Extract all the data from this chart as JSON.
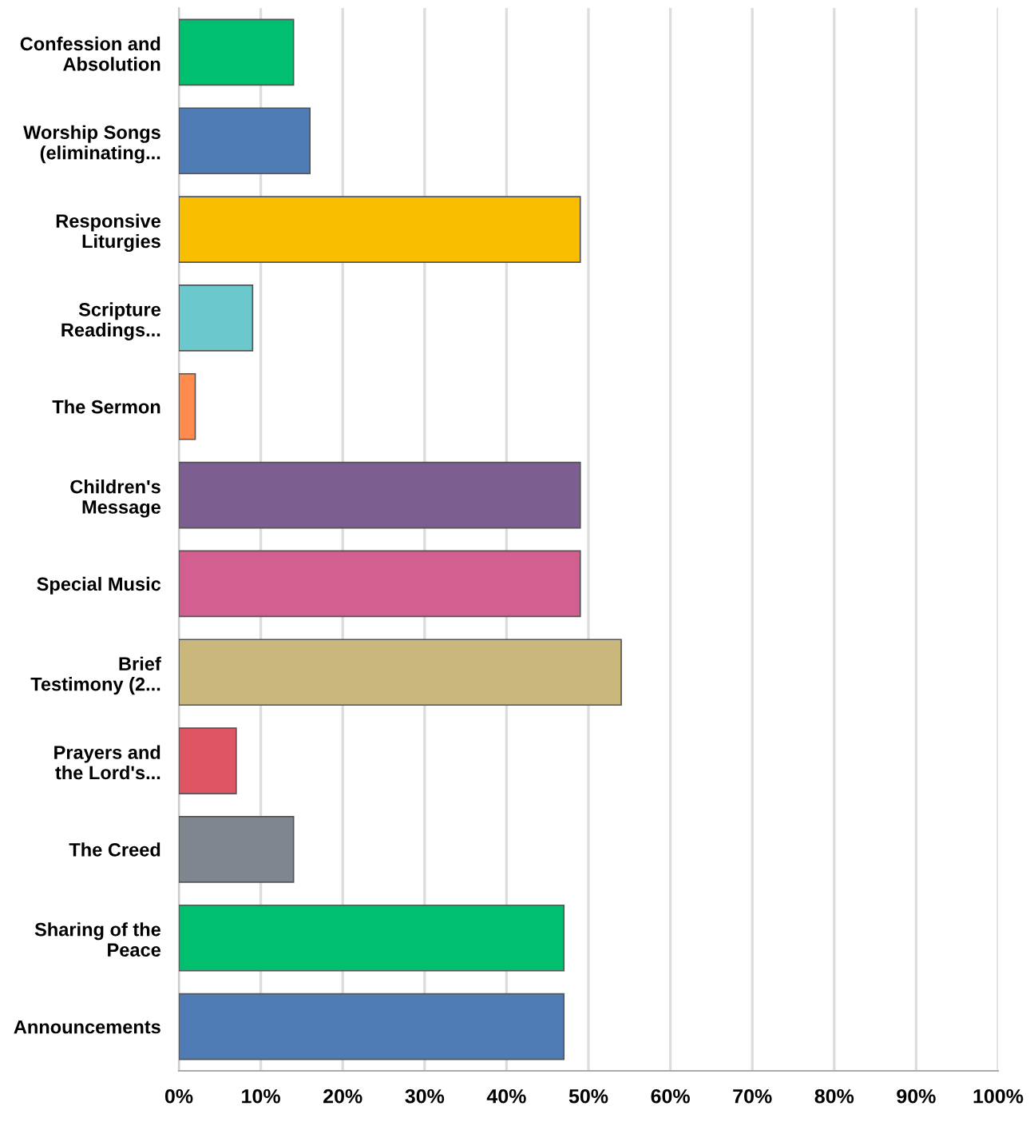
{
  "chart_data": {
    "type": "bar",
    "orientation": "horizontal",
    "categories": [
      "Confession and\nAbsolution",
      "Worship Songs\n(eliminating...",
      "Responsive\nLiturgies",
      "Scripture\nReadings...",
      "The Sermon",
      "Children's\nMessage",
      "Special Music",
      "Brief\nTestimony (2...",
      "Prayers and\nthe Lord's...",
      "The Creed",
      "Sharing of the\nPeace",
      "Announcements"
    ],
    "values": [
      14,
      16,
      49,
      9,
      2,
      49,
      49,
      54,
      7,
      14,
      47,
      47
    ],
    "colors": [
      "#00bf6f",
      "#507cb6",
      "#f9be00",
      "#6bc8cd",
      "#ff8b4f",
      "#7d5e90",
      "#d25f90",
      "#c9b77c",
      "#e05563",
      "#7f868f",
      "#00bf6f",
      "#507cb6"
    ],
    "xlim": [
      0,
      100
    ],
    "xticks": [
      {
        "value": 0,
        "label": "0%"
      },
      {
        "value": 10,
        "label": "10%"
      },
      {
        "value": 20,
        "label": "20%"
      },
      {
        "value": 30,
        "label": "30%"
      },
      {
        "value": 40,
        "label": "40%"
      },
      {
        "value": 50,
        "label": "50%"
      },
      {
        "value": 60,
        "label": "60%"
      },
      {
        "value": 70,
        "label": "70%"
      },
      {
        "value": 80,
        "label": "80%"
      },
      {
        "value": 90,
        "label": "90%"
      },
      {
        "value": 100,
        "label": "100%"
      }
    ],
    "grid": "x"
  }
}
